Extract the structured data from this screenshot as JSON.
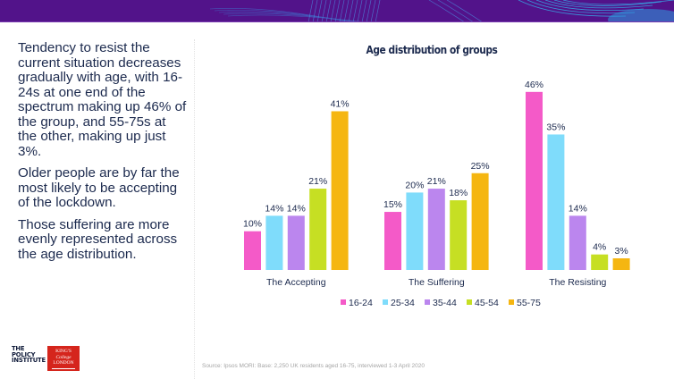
{
  "slide": {
    "paragraphs": [
      "Tendency to resist the current situation decreases gradually with age, with 16-24s at one end of the spectrum making up 46% of the group, and 55-75s at the other, making up just 3%.",
      "Older people are by far the most likely to be accepting of the lockdown.",
      "Those suffering are more evenly represented across the age distribution."
    ],
    "logos": {
      "policy_institute": [
        "THE",
        "POLICY",
        "INSTITUTE"
      ],
      "kings_college": [
        "KING'S",
        "College",
        "LONDON"
      ]
    },
    "source": "Source: Ipsos MORI: Base: 2,250 UK residents aged 16-75, interviewed 1-3 April 2020",
    "banner_color": "#52138a"
  },
  "chart_data": {
    "type": "bar",
    "title": "Age distribution of groups",
    "xlabel": "",
    "ylabel": "",
    "categories": [
      "The Accepting",
      "The Suffering",
      "The Resisting"
    ],
    "series": [
      {
        "name": "16-24",
        "color": "#f45ac8",
        "values": [
          10,
          15,
          46
        ]
      },
      {
        "name": "25-34",
        "color": "#7fdcfb",
        "values": [
          14,
          20,
          35
        ]
      },
      {
        "name": "35-44",
        "color": "#bb86ee",
        "values": [
          14,
          21,
          14
        ]
      },
      {
        "name": "45-54",
        "color": "#c6df23",
        "values": [
          21,
          18,
          4
        ]
      },
      {
        "name": "55-75",
        "color": "#f5b611",
        "values": [
          41,
          25,
          3
        ]
      }
    ],
    "value_suffix": "%",
    "ylim": [
      0,
      50
    ],
    "grid": false,
    "legend_position": "bottom"
  }
}
